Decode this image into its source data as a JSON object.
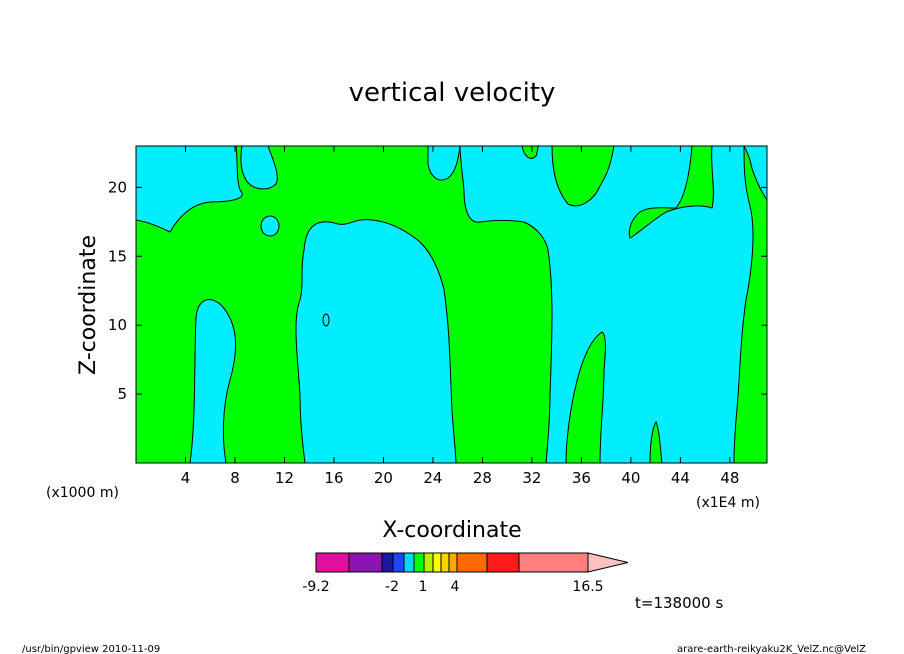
{
  "chart_data": {
    "type": "heatmap",
    "title": "vertical velocity",
    "xlabel": "X-coordinate",
    "ylabel": "Z-coordinate",
    "x_unit_left": "(x1000 m)",
    "x_unit_right": "(x1E4 m)",
    "xlim": [
      0,
      51
    ],
    "ylim": [
      0,
      23
    ],
    "x_ticks": [
      "4",
      "8",
      "12",
      "16",
      "20",
      "24",
      "28",
      "32",
      "36",
      "40",
      "44",
      "48"
    ],
    "y_ticks": [
      "5",
      "10",
      "15",
      "20"
    ],
    "time_label": "t=138000 s",
    "colorbar": {
      "tick_labels": [
        "-9.2",
        "-2",
        "1",
        "4",
        "16.5"
      ],
      "colors": [
        "#e0109e",
        "#8c14b4",
        "#1a1aa0",
        "#1e46ff",
        "#00d7ff",
        "#00ff00",
        "#b4f000",
        "#ffff00",
        "#ffd000",
        "#ffa800",
        "#ff6a00",
        "#ff1a1a",
        "#ff7f7f"
      ],
      "extend_color": "#ffc0c0"
    },
    "region_colors": {
      "background": "#00ff00",
      "negative": "#00eeff"
    }
  },
  "footer": {
    "left": "/usr/bin/gpview   2010-11-09",
    "right": "arare-earth-reikyaku2K_VelZ.nc@VelZ"
  }
}
